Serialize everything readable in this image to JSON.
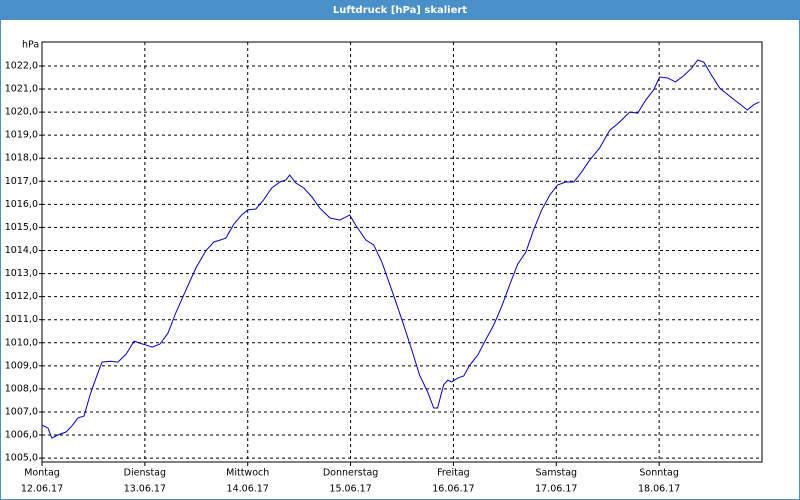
{
  "chart_data": {
    "type": "line",
    "title": "Luftdruck [hPa] skaliert",
    "y_label": "hPa",
    "x": [
      0,
      1.4,
      2.3,
      3.7,
      5.6,
      7.0,
      8.4,
      9.8,
      11.2,
      12.6,
      14.0,
      15.9,
      17.7,
      19.6,
      21.5,
      22.9,
      24.3,
      25.7,
      27.5,
      29.4,
      31.2,
      33.6,
      35.9,
      38.2,
      40.1,
      41.5,
      42.9,
      44.8,
      46.6,
      48.0,
      49.9,
      51.7,
      53.6,
      55.5,
      56.9,
      57.8,
      59.2,
      61.1,
      63.0,
      64.8,
      67.2,
      69.5,
      71.8,
      73.2,
      75.6,
      77.4,
      79.3,
      81.6,
      84.0,
      86.3,
      88.1,
      90.0,
      91.4,
      92.3,
      93.7,
      94.7,
      95.6,
      97.0,
      98.4,
      99.8,
      101.7,
      103.5,
      105.4,
      107.3,
      109.1,
      111.0,
      112.9,
      114.7,
      116.6,
      118.5,
      120.3,
      122.2,
      124.1,
      125.9,
      127.8,
      130.1,
      132.5,
      134.8,
      137.1,
      139.0,
      140.9,
      142.7,
      144.1,
      146.0,
      147.8,
      149.7,
      151.6,
      153.0,
      154.4,
      156.2,
      158.1,
      160.4,
      162.8,
      164.6,
      166.0,
      167.4
    ],
    "series": [
      {
        "color": "#0000c8",
        "values": [
          1006.43,
          1006.3,
          1005.87,
          1006.0,
          1006.13,
          1006.4,
          1006.74,
          1006.82,
          1007.73,
          1008.47,
          1009.16,
          1009.2,
          1009.16,
          1009.5,
          1010.07,
          1009.98,
          1009.9,
          1009.81,
          1009.94,
          1010.42,
          1011.29,
          1012.29,
          1013.24,
          1013.98,
          1014.37,
          1014.45,
          1014.54,
          1015.15,
          1015.54,
          1015.76,
          1015.8,
          1016.19,
          1016.71,
          1016.97,
          1017.06,
          1017.27,
          1016.93,
          1016.71,
          1016.32,
          1015.84,
          1015.41,
          1015.32,
          1015.54,
          1015.1,
          1014.45,
          1014.24,
          1013.5,
          1012.29,
          1010.99,
          1009.68,
          1008.6,
          1007.86,
          1007.17,
          1007.17,
          1008.17,
          1008.38,
          1008.3,
          1008.47,
          1008.56,
          1009.03,
          1009.47,
          1010.12,
          1010.77,
          1011.59,
          1012.5,
          1013.41,
          1013.93,
          1014.89,
          1015.76,
          1016.41,
          1016.84,
          1016.97,
          1016.97,
          1017.4,
          1017.92,
          1018.44,
          1019.22,
          1019.57,
          1020.0,
          1019.96,
          1020.53,
          1020.96,
          1021.52,
          1021.48,
          1021.31,
          1021.57,
          1021.91,
          1022.26,
          1022.17,
          1021.61,
          1021.05,
          1020.7,
          1020.35,
          1020.09,
          1020.31,
          1020.44
        ]
      }
    ],
    "xlim": [
      0,
      168
    ],
    "xticks": [
      {
        "value": 0,
        "label": "Montag"
      },
      {
        "value": 24,
        "label": "Dienstag"
      },
      {
        "value": 48,
        "label": "Mittwoch"
      },
      {
        "value": 72,
        "label": "Donnerstag"
      },
      {
        "value": 96,
        "label": "Freitag"
      },
      {
        "value": 120,
        "label": "Samstag"
      },
      {
        "value": 144,
        "label": "Sonntag"
      }
    ],
    "xtick_dates": [
      "12.06.17",
      "13.06.17",
      "14.06.17",
      "15.06.17",
      "16.06.17",
      "17.06.17",
      "18.06.17"
    ],
    "ylim": [
      1004.83,
      1023.04
    ],
    "yticks": [
      {
        "value": 1005,
        "label": "1005,0"
      },
      {
        "value": 1006,
        "label": "1006,0"
      },
      {
        "value": 1007,
        "label": "1007,0"
      },
      {
        "value": 1008,
        "label": "1008,0"
      },
      {
        "value": 1009,
        "label": "1009,0"
      },
      {
        "value": 1010,
        "label": "1010,0"
      },
      {
        "value": 1011,
        "label": "1011,0"
      },
      {
        "value": 1012,
        "label": "1012,0"
      },
      {
        "value": 1013,
        "label": "1013,0"
      },
      {
        "value": 1014,
        "label": "1014,0"
      },
      {
        "value": 1015,
        "label": "1015,0"
      },
      {
        "value": 1016,
        "label": "1016,0"
      },
      {
        "value": 1017,
        "label": "1017,0"
      },
      {
        "value": 1018,
        "label": "1018,0"
      },
      {
        "value": 1019,
        "label": "1019,0"
      },
      {
        "value": 1020,
        "label": "1020,0"
      },
      {
        "value": 1021,
        "label": "1021,0"
      },
      {
        "value": 1022,
        "label": "1022,0"
      }
    ],
    "grid": true
  }
}
